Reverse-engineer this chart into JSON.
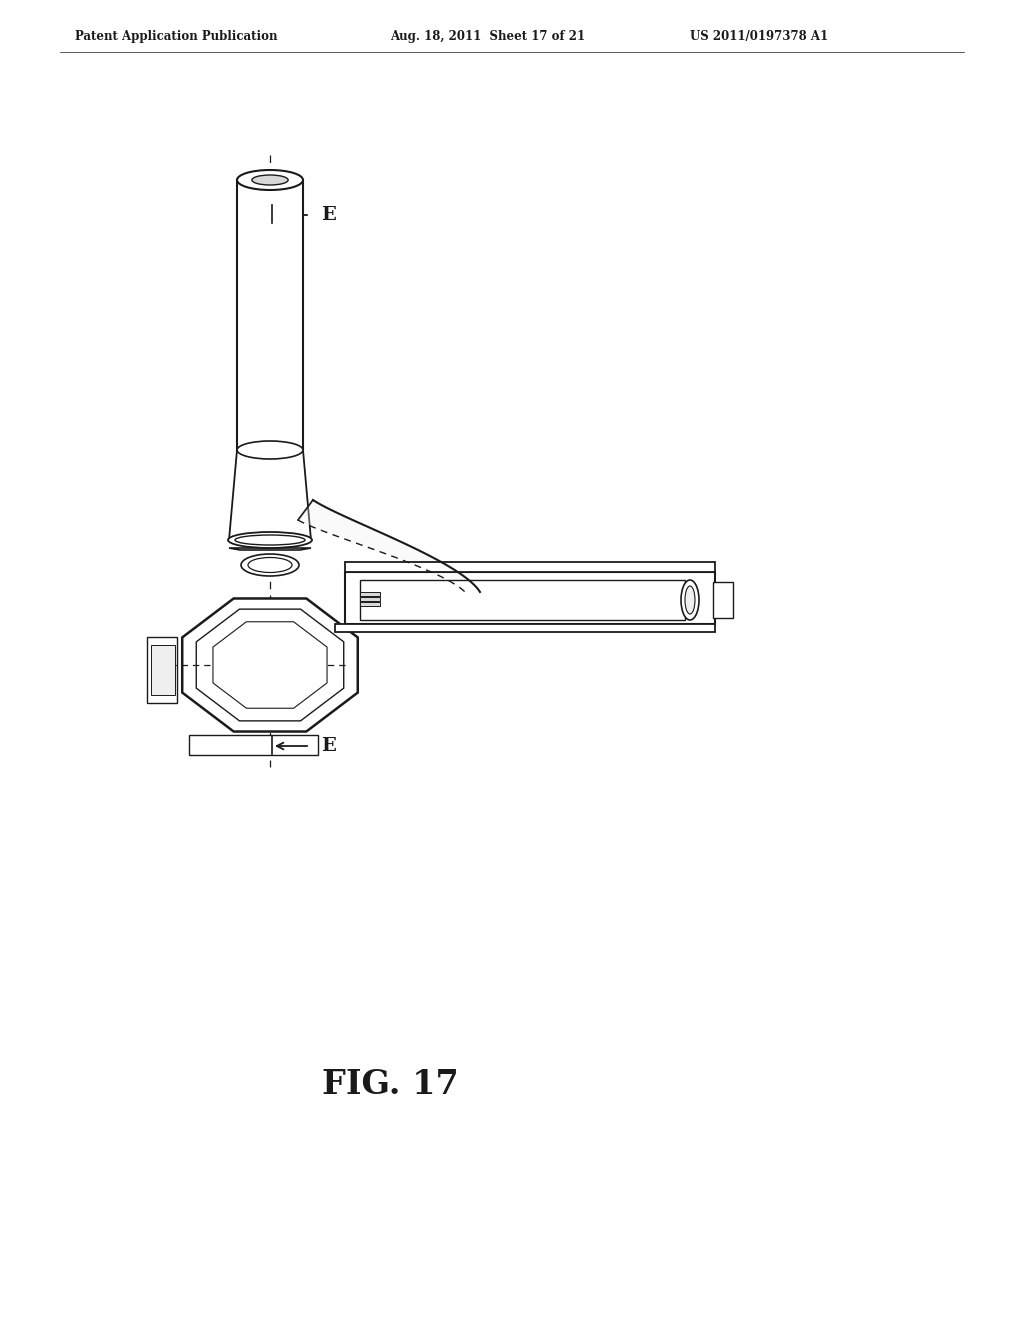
{
  "header_left": "Patent Application Publication",
  "header_mid": "Aug. 18, 2011  Sheet 17 of 21",
  "header_right": "US 2011/0197378 A1",
  "figure_label": "FIG. 17",
  "bg_color": "#ffffff",
  "line_color": "#1a1a1a",
  "fill_white": "#ffffff",
  "fill_light": "#f0f0f0",
  "fill_mid": "#d8d8d8",
  "fill_dark": "#b0b0b0"
}
